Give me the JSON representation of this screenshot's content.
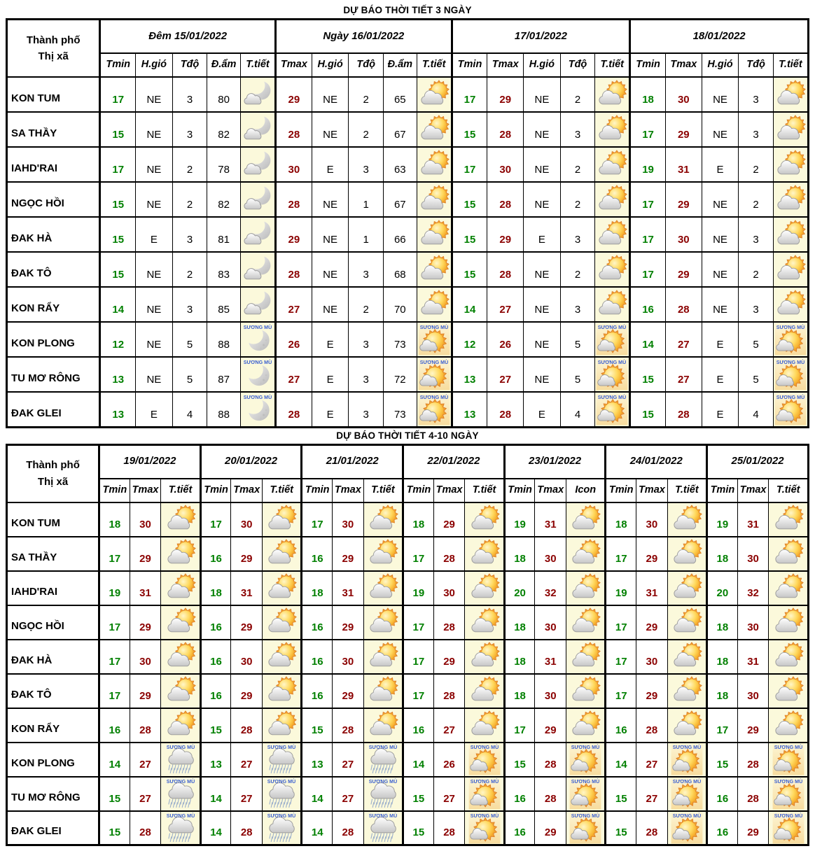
{
  "colors": {
    "tmin": "#008000",
    "tmax": "#8B0000",
    "fog_label": "#3A5FD0",
    "icon_bg": "#FBF9DB"
  },
  "icons": {
    "fog_label": "SƯƠNG MÙ"
  },
  "table1": {
    "title": "DỰ BÁO THỜI TIẾT 3 NGÀY",
    "name_header": [
      "Thành phố",
      "Thị xã"
    ],
    "groups": [
      {
        "label": "Đêm 15/01/2022",
        "key": "d1",
        "cols": [
          "Tmin",
          "H.gió",
          "Tđộ",
          "Đ.ẩm",
          "T.tiết"
        ]
      },
      {
        "label": "Ngày 16/01/2022",
        "key": "d2",
        "cols": [
          "Tmax",
          "H.gió",
          "Tđộ",
          "Đ.ẩm",
          "T.tiết"
        ]
      },
      {
        "label": "17/01/2022",
        "key": "d3",
        "cols": [
          "Tmin",
          "Tmax",
          "H.gió",
          "Tđộ",
          "T.tiết"
        ]
      },
      {
        "label": "18/01/2022",
        "key": "d4",
        "cols": [
          "Tmin",
          "Tmax",
          "H.gió",
          "Tđộ",
          "T.tiết"
        ]
      }
    ],
    "rows": [
      {
        "name": "KON TUM",
        "d1": {
          "tmin": "17",
          "wind": "NE",
          "tdo": "3",
          "dam": "80",
          "icon": "night-cloud"
        },
        "d2": {
          "tmax": "29",
          "wind": "NE",
          "tdo": "2",
          "dam": "65",
          "icon": "day-cloud"
        },
        "d3": {
          "tmin": "17",
          "tmax": "29",
          "wind": "NE",
          "tdo": "2",
          "icon": "day-cloud"
        },
        "d4": {
          "tmin": "18",
          "tmax": "30",
          "wind": "NE",
          "tdo": "3",
          "icon": "day-cloud"
        }
      },
      {
        "name": "SA THẦY",
        "d1": {
          "tmin": "15",
          "wind": "NE",
          "tdo": "3",
          "dam": "82",
          "icon": "night-cloud"
        },
        "d2": {
          "tmax": "28",
          "wind": "NE",
          "tdo": "2",
          "dam": "67",
          "icon": "day-cloud"
        },
        "d3": {
          "tmin": "15",
          "tmax": "28",
          "wind": "NE",
          "tdo": "3",
          "icon": "day-cloud"
        },
        "d4": {
          "tmin": "17",
          "tmax": "29",
          "wind": "NE",
          "tdo": "3",
          "icon": "day-cloud"
        }
      },
      {
        "name": "IAHD'RAI",
        "d1": {
          "tmin": "17",
          "wind": "NE",
          "tdo": "2",
          "dam": "78",
          "icon": "night-cloud"
        },
        "d2": {
          "tmax": "30",
          "wind": "E",
          "tdo": "3",
          "dam": "63",
          "icon": "day-cloud"
        },
        "d3": {
          "tmin": "17",
          "tmax": "30",
          "wind": "NE",
          "tdo": "2",
          "icon": "day-cloud"
        },
        "d4": {
          "tmin": "19",
          "tmax": "31",
          "wind": "E",
          "tdo": "2",
          "icon": "day-cloud"
        }
      },
      {
        "name": "NGỌC HỒI",
        "d1": {
          "tmin": "15",
          "wind": "NE",
          "tdo": "2",
          "dam": "82",
          "icon": "night-cloud"
        },
        "d2": {
          "tmax": "28",
          "wind": "NE",
          "tdo": "1",
          "dam": "67",
          "icon": "day-cloud"
        },
        "d3": {
          "tmin": "15",
          "tmax": "28",
          "wind": "NE",
          "tdo": "2",
          "icon": "day-cloud"
        },
        "d4": {
          "tmin": "17",
          "tmax": "29",
          "wind": "NE",
          "tdo": "2",
          "icon": "day-cloud"
        }
      },
      {
        "name": "ĐAK HÀ",
        "d1": {
          "tmin": "15",
          "wind": "E",
          "tdo": "3",
          "dam": "81",
          "icon": "night-cloud"
        },
        "d2": {
          "tmax": "29",
          "wind": "NE",
          "tdo": "1",
          "dam": "66",
          "icon": "day-cloud"
        },
        "d3": {
          "tmin": "15",
          "tmax": "29",
          "wind": "E",
          "tdo": "3",
          "icon": "day-cloud"
        },
        "d4": {
          "tmin": "17",
          "tmax": "30",
          "wind": "NE",
          "tdo": "3",
          "icon": "day-cloud"
        }
      },
      {
        "name": "ĐAK TÔ",
        "d1": {
          "tmin": "15",
          "wind": "NE",
          "tdo": "2",
          "dam": "83",
          "icon": "night-cloud"
        },
        "d2": {
          "tmax": "28",
          "wind": "NE",
          "tdo": "3",
          "dam": "68",
          "icon": "day-cloud"
        },
        "d3": {
          "tmin": "15",
          "tmax": "28",
          "wind": "NE",
          "tdo": "2",
          "icon": "day-cloud"
        },
        "d4": {
          "tmin": "17",
          "tmax": "29",
          "wind": "NE",
          "tdo": "2",
          "icon": "day-cloud"
        }
      },
      {
        "name": "KON RẨY",
        "d1": {
          "tmin": "14",
          "wind": "NE",
          "tdo": "3",
          "dam": "85",
          "icon": "night-cloud"
        },
        "d2": {
          "tmax": "27",
          "wind": "NE",
          "tdo": "2",
          "dam": "70",
          "icon": "day-cloud"
        },
        "d3": {
          "tmin": "14",
          "tmax": "27",
          "wind": "NE",
          "tdo": "3",
          "icon": "day-cloud"
        },
        "d4": {
          "tmin": "16",
          "tmax": "28",
          "wind": "NE",
          "tdo": "3",
          "icon": "day-cloud"
        }
      },
      {
        "name": "KON PLONG",
        "d1": {
          "tmin": "12",
          "wind": "NE",
          "tdo": "5",
          "dam": "88",
          "icon": "fog-night"
        },
        "d2": {
          "tmax": "26",
          "wind": "E",
          "tdo": "3",
          "dam": "73",
          "icon": "fog-day"
        },
        "d3": {
          "tmin": "12",
          "tmax": "26",
          "wind": "NE",
          "tdo": "5",
          "icon": "fog-day"
        },
        "d4": {
          "tmin": "14",
          "tmax": "27",
          "wind": "E",
          "tdo": "5",
          "icon": "fog-day"
        }
      },
      {
        "name": "TU MƠ RÔNG",
        "d1": {
          "tmin": "13",
          "wind": "NE",
          "tdo": "5",
          "dam": "87",
          "icon": "fog-night"
        },
        "d2": {
          "tmax": "27",
          "wind": "E",
          "tdo": "3",
          "dam": "72",
          "icon": "fog-day"
        },
        "d3": {
          "tmin": "13",
          "tmax": "27",
          "wind": "NE",
          "tdo": "5",
          "icon": "fog-day"
        },
        "d4": {
          "tmin": "15",
          "tmax": "27",
          "wind": "E",
          "tdo": "5",
          "icon": "fog-day"
        }
      },
      {
        "name": "ĐAK GLEI",
        "d1": {
          "tmin": "13",
          "wind": "E",
          "tdo": "4",
          "dam": "88",
          "icon": "fog-night"
        },
        "d2": {
          "tmax": "28",
          "wind": "E",
          "tdo": "3",
          "dam": "73",
          "icon": "fog-day"
        },
        "d3": {
          "tmin": "13",
          "tmax": "28",
          "wind": "E",
          "tdo": "4",
          "icon": "fog-day"
        },
        "d4": {
          "tmin": "15",
          "tmax": "28",
          "wind": "E",
          "tdo": "4",
          "icon": "fog-day"
        }
      }
    ]
  },
  "table2": {
    "title": "DỰ BÁO THỜI TIẾT 4-10 NGÀY",
    "name_header": [
      "Thành phố",
      "Thị xã"
    ],
    "groups": [
      {
        "date": "19/01/2022",
        "cols": [
          "Tmin",
          "Tmax",
          "T.tiết"
        ]
      },
      {
        "date": "20/01/2022",
        "cols": [
          "Tmin",
          "Tmax",
          "T.tiết"
        ]
      },
      {
        "date": "21/01/2022",
        "cols": [
          "Tmin",
          "Tmax",
          "T.tiết"
        ]
      },
      {
        "date": "22/01/2022",
        "cols": [
          "Tmin",
          "Tmax",
          "T.tiết"
        ]
      },
      {
        "date": "23/01/2022",
        "cols": [
          "Tmin",
          "Tmax",
          "Icon"
        ]
      },
      {
        "date": "24/01/2022",
        "cols": [
          "Tmin",
          "Tmax",
          "T.tiết"
        ]
      },
      {
        "date": "25/01/2022",
        "cols": [
          "Tmin",
          "Tmax",
          "T.tiết"
        ]
      }
    ],
    "rows": [
      {
        "name": "KON TUM",
        "days": [
          {
            "tmin": "18",
            "tmax": "30",
            "icon": "day-cloud"
          },
          {
            "tmin": "17",
            "tmax": "30",
            "icon": "day-cloud"
          },
          {
            "tmin": "17",
            "tmax": "30",
            "icon": "day-cloud"
          },
          {
            "tmin": "18",
            "tmax": "29",
            "icon": "day-cloud"
          },
          {
            "tmin": "19",
            "tmax": "31",
            "icon": "day-cloud"
          },
          {
            "tmin": "18",
            "tmax": "30",
            "icon": "day-cloud"
          },
          {
            "tmin": "19",
            "tmax": "31",
            "icon": "day-cloud"
          }
        ]
      },
      {
        "name": "SA THẦY",
        "days": [
          {
            "tmin": "17",
            "tmax": "29",
            "icon": "day-cloud"
          },
          {
            "tmin": "16",
            "tmax": "29",
            "icon": "day-cloud"
          },
          {
            "tmin": "16",
            "tmax": "29",
            "icon": "day-cloud"
          },
          {
            "tmin": "17",
            "tmax": "28",
            "icon": "day-cloud"
          },
          {
            "tmin": "18",
            "tmax": "30",
            "icon": "day-cloud"
          },
          {
            "tmin": "17",
            "tmax": "29",
            "icon": "day-cloud"
          },
          {
            "tmin": "18",
            "tmax": "30",
            "icon": "day-cloud"
          }
        ]
      },
      {
        "name": "IAHD'RAI",
        "days": [
          {
            "tmin": "19",
            "tmax": "31",
            "icon": "day-cloud"
          },
          {
            "tmin": "18",
            "tmax": "31",
            "icon": "day-cloud"
          },
          {
            "tmin": "18",
            "tmax": "31",
            "icon": "day-cloud"
          },
          {
            "tmin": "19",
            "tmax": "30",
            "icon": "day-cloud"
          },
          {
            "tmin": "20",
            "tmax": "32",
            "icon": "day-cloud"
          },
          {
            "tmin": "19",
            "tmax": "31",
            "icon": "day-cloud"
          },
          {
            "tmin": "20",
            "tmax": "32",
            "icon": "day-cloud"
          }
        ]
      },
      {
        "name": "NGỌC HỒI",
        "days": [
          {
            "tmin": "17",
            "tmax": "29",
            "icon": "day-cloud"
          },
          {
            "tmin": "16",
            "tmax": "29",
            "icon": "day-cloud"
          },
          {
            "tmin": "16",
            "tmax": "29",
            "icon": "day-cloud"
          },
          {
            "tmin": "17",
            "tmax": "28",
            "icon": "day-cloud"
          },
          {
            "tmin": "18",
            "tmax": "30",
            "icon": "day-cloud"
          },
          {
            "tmin": "17",
            "tmax": "29",
            "icon": "day-cloud"
          },
          {
            "tmin": "18",
            "tmax": "30",
            "icon": "day-cloud"
          }
        ]
      },
      {
        "name": "ĐAK HÀ",
        "days": [
          {
            "tmin": "17",
            "tmax": "30",
            "icon": "day-cloud"
          },
          {
            "tmin": "16",
            "tmax": "30",
            "icon": "day-cloud"
          },
          {
            "tmin": "16",
            "tmax": "30",
            "icon": "day-cloud"
          },
          {
            "tmin": "17",
            "tmax": "29",
            "icon": "day-cloud"
          },
          {
            "tmin": "18",
            "tmax": "31",
            "icon": "day-cloud"
          },
          {
            "tmin": "17",
            "tmax": "30",
            "icon": "day-cloud"
          },
          {
            "tmin": "18",
            "tmax": "31",
            "icon": "day-cloud"
          }
        ]
      },
      {
        "name": "ĐAK TÔ",
        "days": [
          {
            "tmin": "17",
            "tmax": "29",
            "icon": "day-cloud"
          },
          {
            "tmin": "16",
            "tmax": "29",
            "icon": "day-cloud"
          },
          {
            "tmin": "16",
            "tmax": "29",
            "icon": "day-cloud"
          },
          {
            "tmin": "17",
            "tmax": "28",
            "icon": "day-cloud"
          },
          {
            "tmin": "18",
            "tmax": "30",
            "icon": "day-cloud"
          },
          {
            "tmin": "17",
            "tmax": "29",
            "icon": "day-cloud"
          },
          {
            "tmin": "18",
            "tmax": "30",
            "icon": "day-cloud"
          }
        ]
      },
      {
        "name": "KON RẨY",
        "days": [
          {
            "tmin": "16",
            "tmax": "28",
            "icon": "day-cloud"
          },
          {
            "tmin": "15",
            "tmax": "28",
            "icon": "day-cloud"
          },
          {
            "tmin": "15",
            "tmax": "28",
            "icon": "day-cloud"
          },
          {
            "tmin": "16",
            "tmax": "27",
            "icon": "day-cloud"
          },
          {
            "tmin": "17",
            "tmax": "29",
            "icon": "day-cloud"
          },
          {
            "tmin": "16",
            "tmax": "28",
            "icon": "day-cloud"
          },
          {
            "tmin": "17",
            "tmax": "29",
            "icon": "day-cloud"
          }
        ]
      },
      {
        "name": "KON PLONG",
        "days": [
          {
            "tmin": "14",
            "tmax": "27",
            "icon": "fog-rain"
          },
          {
            "tmin": "13",
            "tmax": "27",
            "icon": "fog-rain"
          },
          {
            "tmin": "13",
            "tmax": "27",
            "icon": "fog-rain"
          },
          {
            "tmin": "14",
            "tmax": "26",
            "icon": "fog-day"
          },
          {
            "tmin": "15",
            "tmax": "28",
            "icon": "fog-day"
          },
          {
            "tmin": "14",
            "tmax": "27",
            "icon": "fog-day"
          },
          {
            "tmin": "15",
            "tmax": "28",
            "icon": "fog-day"
          }
        ]
      },
      {
        "name": "TU MƠ RÔNG",
        "days": [
          {
            "tmin": "15",
            "tmax": "27",
            "icon": "fog-rain"
          },
          {
            "tmin": "14",
            "tmax": "27",
            "icon": "fog-rain"
          },
          {
            "tmin": "14",
            "tmax": "27",
            "icon": "fog-rain"
          },
          {
            "tmin": "15",
            "tmax": "27",
            "icon": "fog-day"
          },
          {
            "tmin": "16",
            "tmax": "28",
            "icon": "fog-day"
          },
          {
            "tmin": "15",
            "tmax": "27",
            "icon": "fog-day"
          },
          {
            "tmin": "16",
            "tmax": "28",
            "icon": "fog-day"
          }
        ]
      },
      {
        "name": "ĐAK GLEI",
        "days": [
          {
            "tmin": "15",
            "tmax": "28",
            "icon": "fog-rain"
          },
          {
            "tmin": "14",
            "tmax": "28",
            "icon": "fog-rain"
          },
          {
            "tmin": "14",
            "tmax": "28",
            "icon": "fog-rain"
          },
          {
            "tmin": "15",
            "tmax": "28",
            "icon": "fog-day"
          },
          {
            "tmin": "16",
            "tmax": "29",
            "icon": "fog-day"
          },
          {
            "tmin": "15",
            "tmax": "28",
            "icon": "fog-day"
          },
          {
            "tmin": "16",
            "tmax": "29",
            "icon": "fog-day"
          }
        ]
      }
    ]
  }
}
